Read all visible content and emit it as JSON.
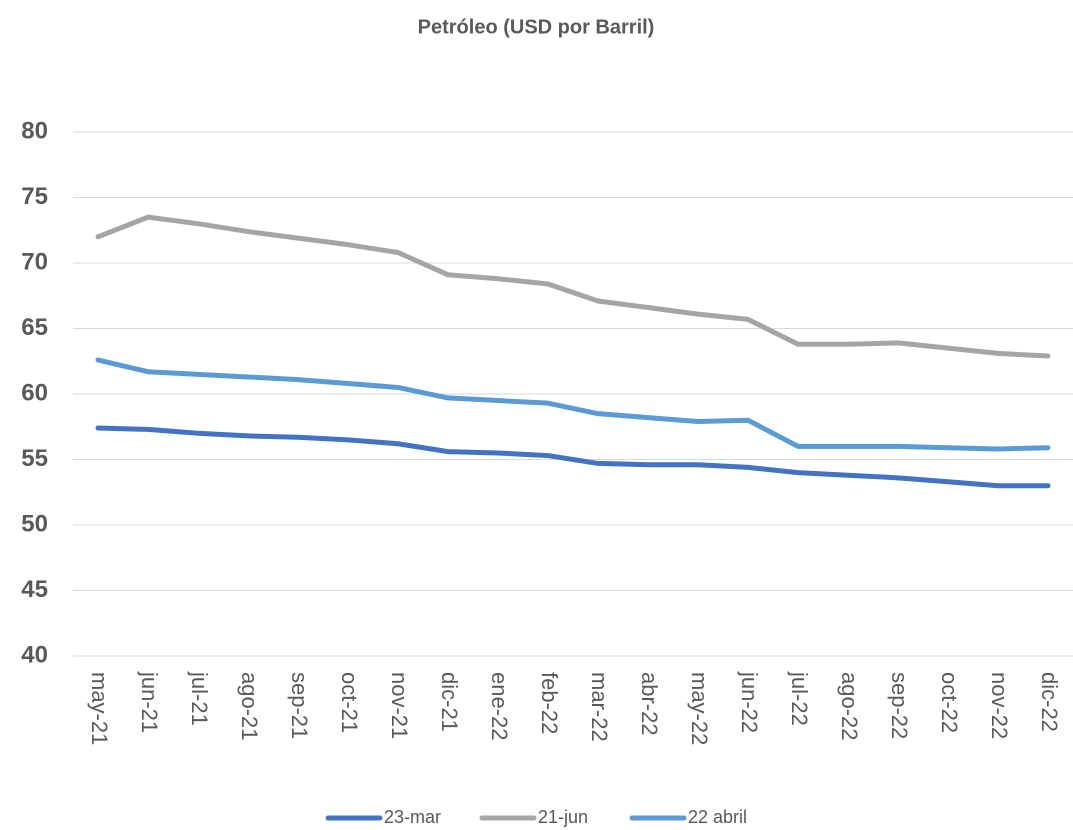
{
  "chart_data": {
    "type": "line",
    "title": "Petróleo (USD por Barril)",
    "categories": [
      "may-21",
      "jun-21",
      "jul-21",
      "ago-21",
      "sep-21",
      "oct-21",
      "nov-21",
      "dic-21",
      "ene-22",
      "feb-22",
      "mar-22",
      "abr-22",
      "may-22",
      "jun-22",
      "jul-22",
      "ago-22",
      "sep-22",
      "oct-22",
      "nov-22",
      "dic-22"
    ],
    "series": [
      {
        "name": "23-mar",
        "color": "#4472c4",
        "values": [
          57.4,
          57.3,
          57.0,
          56.8,
          56.7,
          56.5,
          56.2,
          55.6,
          55.5,
          55.3,
          54.7,
          54.6,
          54.6,
          54.4,
          54.0,
          53.8,
          53.6,
          53.3,
          53.0,
          53.0
        ]
      },
      {
        "name": "21-jun",
        "color": "#a5a5a5",
        "values": [
          72.0,
          73.5,
          73.0,
          72.4,
          71.9,
          71.4,
          70.8,
          69.1,
          68.8,
          68.4,
          67.1,
          66.6,
          66.1,
          65.7,
          63.8,
          63.8,
          63.9,
          63.5,
          63.1,
          62.9
        ]
      },
      {
        "name": "22 abril",
        "color": "#5b9bd5",
        "values": [
          62.6,
          61.7,
          61.5,
          61.3,
          61.1,
          60.8,
          60.5,
          59.7,
          59.5,
          59.3,
          58.5,
          58.2,
          57.9,
          58.0,
          56.0,
          56.0,
          56.0,
          55.9,
          55.8,
          55.9
        ]
      }
    ],
    "ylim": [
      40,
      80
    ],
    "yticks": [
      40,
      45,
      50,
      55,
      60,
      65,
      70,
      75,
      80
    ],
    "grid": true,
    "legend": "bottom"
  }
}
